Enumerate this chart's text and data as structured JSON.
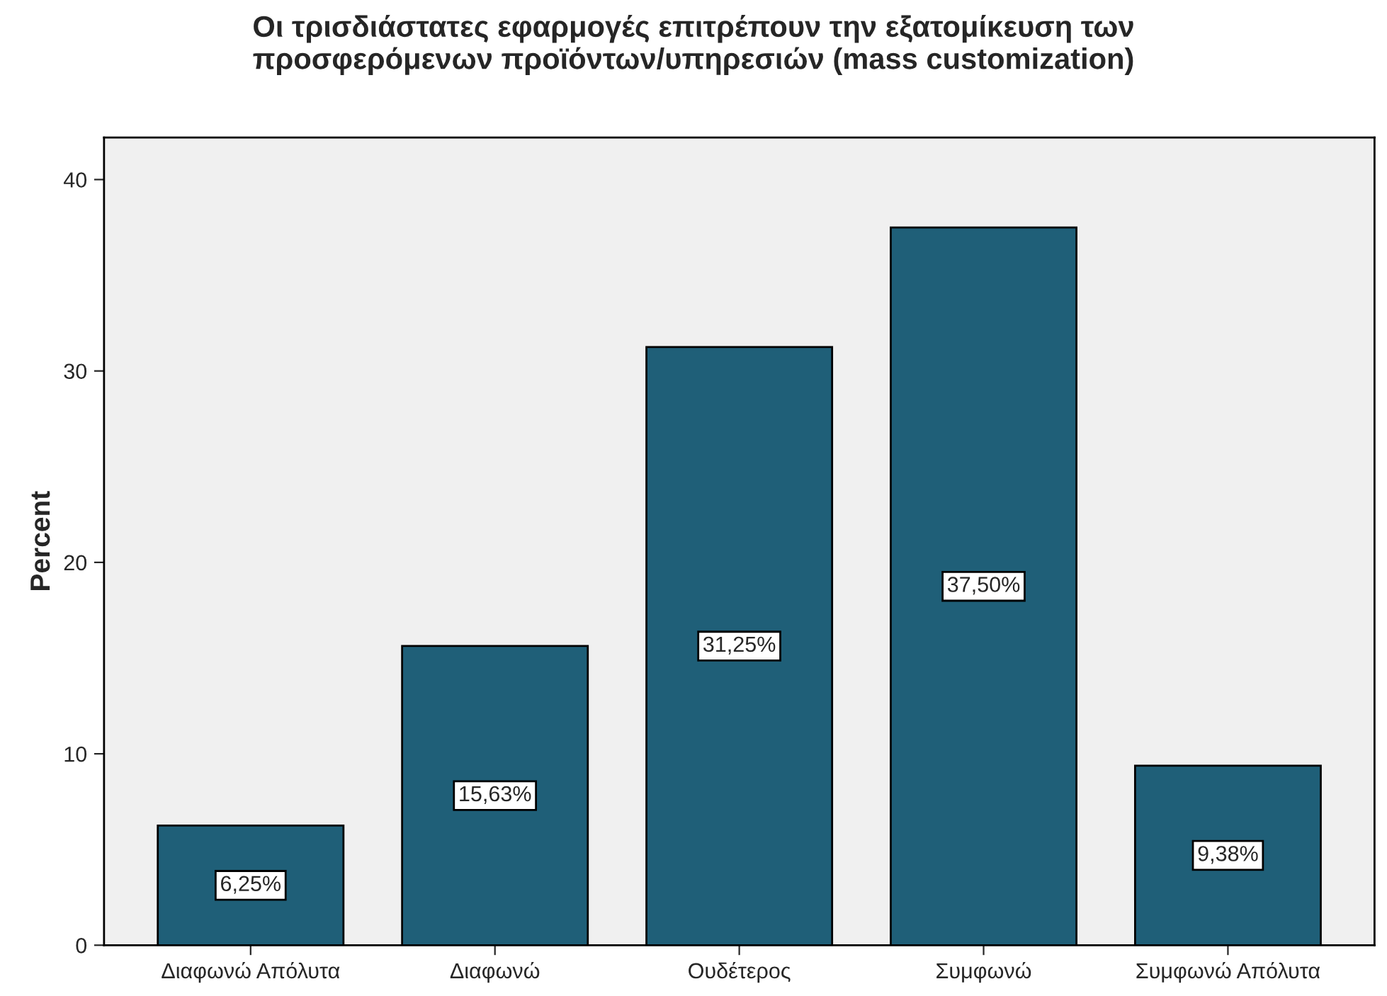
{
  "chart_data": {
    "type": "bar",
    "title": "Οι τρισδιάστατες εφαρμογές επιτρέπουν την εξατομίκευση των\nπροσφερόμενων προϊόντων/υπηρεσιών (mass customization)",
    "ylabel": "Percent",
    "categories": [
      "Διαφωνώ Απόλυτα",
      "Διαφωνώ",
      "Ουδέτερος",
      "Συμφωνώ",
      "Συμφωνώ Απόλυτα"
    ],
    "values": [
      6.25,
      15.63,
      31.25,
      37.5,
      9.38
    ],
    "value_labels": [
      "6,25%",
      "15,63%",
      "31,25%",
      "37,50%",
      "9,38%"
    ],
    "color": "#1f5f78",
    "ylim": [
      0,
      42.2
    ],
    "yticks": [
      0,
      10,
      20,
      30,
      40
    ],
    "grid": false,
    "legend": false
  }
}
